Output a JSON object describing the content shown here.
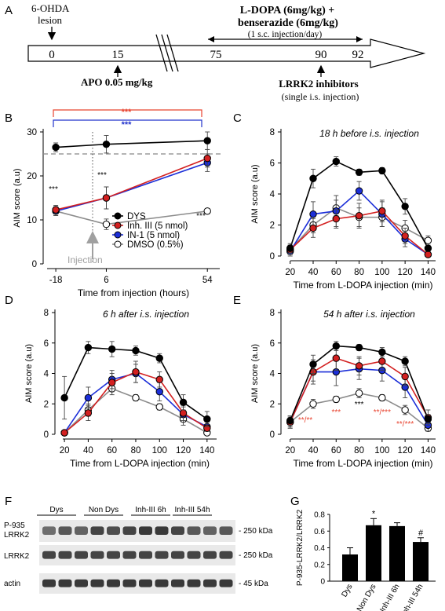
{
  "colors": {
    "dys": "#000000",
    "inh3": "#d32020",
    "in1": "#1c2fd8",
    "dmso": "#ffffff",
    "dmso_line": "#8c8c8c",
    "injection": "#a0a0a0",
    "arrow_red": "#e8432f",
    "arrow_blue": "#2233cc"
  },
  "panel_letters": {
    "a": "A",
    "b": "B",
    "c": "C",
    "d": "D",
    "e": "E",
    "f": "F",
    "g": "G"
  },
  "timeline": {
    "ticks": [
      "0",
      "15",
      "75",
      "90",
      "92"
    ],
    "lesion_label_1": "6-OHDA",
    "lesion_label_2": "lesion",
    "apo_label": "APO 0.05 mg/kg",
    "ldopa_label_1": "L-DOPA (6mg/kg) +",
    "ldopa_label_2": "benserazide (6mg/kg)",
    "ldopa_label_3": "(1 s.c. injection/day)",
    "lrrk2_label_1": "LRRK2 inhibitors",
    "lrrk2_label_2": "(single i.s. injection)"
  },
  "chart_data": [
    {
      "id": "B",
      "type": "line",
      "x": [
        -18,
        6,
        54
      ],
      "xticks": [
        "-18",
        "6",
        "54"
      ],
      "xlim": [
        -18,
        54
      ],
      "ylim": [
        0,
        30
      ],
      "yticks": [
        0,
        10,
        20,
        30
      ],
      "xlabel": "Time from injection (hours)",
      "ylabel": "AIM score (a.u)",
      "series": [
        {
          "name": "DYS",
          "values": [
            26.5,
            27.2,
            28.0
          ],
          "err": [
            1.0,
            2.0,
            2.0
          ]
        },
        {
          "name": "Inh. III (5 nmol)",
          "values": [
            12.3,
            15.0,
            24.0
          ],
          "err": [
            1.0,
            2.5,
            2.0
          ]
        },
        {
          "name": "IN-1 (5 nmol)",
          "values": [
            12.0,
            15.0,
            23.0
          ],
          "err": [
            1.0,
            2.5,
            2.0
          ]
        },
        {
          "name": "DMSO (0.5%)",
          "values": [
            12.0,
            9.0,
            12.0
          ],
          "err": [
            1.0,
            1.2,
            0.6
          ]
        }
      ],
      "reference_line": 25,
      "injection_label": "Injection",
      "annotations": [
        "***",
        "***",
        "***"
      ],
      "bracket_red": "***",
      "bracket_blue": "***",
      "legend": "center-right"
    },
    {
      "id": "C",
      "type": "line",
      "title": "18 h before i.s. injection",
      "x": [
        20,
        40,
        60,
        80,
        100,
        120,
        140
      ],
      "xticks": [
        "20",
        "40",
        "60",
        "80",
        "100",
        "120",
        "140"
      ],
      "ylim": [
        0,
        8
      ],
      "yticks": [
        0,
        2,
        4,
        6,
        8
      ],
      "xlabel": "Time from L-DOPA injection (min)",
      "ylabel": "AIM score (a.u)",
      "series": [
        {
          "name": "DYS",
          "values": [
            0.5,
            5.0,
            6.1,
            5.4,
            5.5,
            3.2,
            0.5
          ],
          "err": [
            0.3,
            0.6,
            0.3,
            0.2,
            0.2,
            0.5,
            0.2
          ]
        },
        {
          "name": "Inh. III (5 nmol)",
          "values": [
            0.4,
            1.8,
            2.4,
            2.6,
            2.9,
            1.3,
            0.1
          ],
          "err": [
            0.3,
            0.6,
            0.6,
            0.8,
            0.7,
            0.5,
            0.1
          ]
        },
        {
          "name": "IN-1 (5 nmol)",
          "values": [
            0.3,
            2.7,
            2.9,
            4.2,
            2.7,
            1.1,
            0.1
          ],
          "err": [
            0.3,
            0.8,
            1.0,
            0.6,
            0.8,
            0.5,
            0.1
          ]
        },
        {
          "name": "DMSO (0.5%)",
          "values": [
            0.4,
            2.0,
            3.1,
            2.5,
            2.5,
            1.8,
            1.0
          ],
          "err": [
            0.3,
            0.5,
            0.5,
            0.6,
            0.6,
            0.5,
            0.3
          ]
        }
      ]
    },
    {
      "id": "D",
      "type": "line",
      "title": "6 h after i.s. injection",
      "x": [
        20,
        40,
        60,
        80,
        100,
        120,
        140
      ],
      "xticks": [
        "20",
        "40",
        "60",
        "80",
        "100",
        "120",
        "140"
      ],
      "ylim": [
        0,
        8
      ],
      "yticks": [
        0,
        2,
        4,
        6,
        8
      ],
      "xlabel": "Time from L-DOPA injection (min)",
      "ylabel": "AIM score (a.u)",
      "series": [
        {
          "name": "DYS",
          "values": [
            2.4,
            5.7,
            5.6,
            5.5,
            5.0,
            2.1,
            1.0
          ],
          "err": [
            1.4,
            0.4,
            0.5,
            0.3,
            0.3,
            0.5,
            0.5
          ]
        },
        {
          "name": "Inh. III (5 nmol)",
          "values": [
            0.1,
            1.4,
            3.4,
            4.1,
            3.6,
            1.4,
            0.4
          ],
          "err": [
            0.1,
            0.5,
            0.6,
            0.7,
            0.5,
            0.5,
            0.2
          ]
        },
        {
          "name": "IN-1 (5 nmol)",
          "values": [
            0.1,
            2.4,
            3.6,
            4.0,
            2.8,
            1.3,
            0.5
          ],
          "err": [
            0.1,
            0.7,
            0.6,
            0.6,
            0.6,
            0.5,
            0.3
          ]
        },
        {
          "name": "DMSO (0.5%)",
          "values": [
            0.1,
            1.6,
            3.0,
            2.4,
            1.8,
            1.0,
            0.1
          ],
          "err": [
            0.1,
            0.4,
            0.4,
            0.2,
            0.2,
            0.4,
            0.1
          ]
        }
      ]
    },
    {
      "id": "E",
      "type": "line",
      "title": "54 h after i.s. injection",
      "x": [
        20,
        40,
        60,
        80,
        100,
        120,
        140
      ],
      "xticks": [
        "20",
        "40",
        "60",
        "80",
        "100",
        "120",
        "140"
      ],
      "ylim": [
        0,
        8
      ],
      "yticks": [
        0,
        2,
        4,
        6,
        8
      ],
      "xlabel": "Time from L-DOPA injection (min)",
      "ylabel": "AIM score (a.u)",
      "series": [
        {
          "name": "DYS",
          "values": [
            0.9,
            4.6,
            5.8,
            5.7,
            5.4,
            4.8,
            1.0
          ],
          "err": [
            0.3,
            0.6,
            0.3,
            0.2,
            0.3,
            0.3,
            0.3
          ]
        },
        {
          "name": "Inh. III (5 nmol)",
          "values": [
            0.8,
            4.1,
            5.0,
            4.5,
            4.8,
            3.8,
            1.1
          ],
          "err": [
            0.4,
            0.6,
            0.8,
            0.6,
            0.6,
            0.6,
            0.5
          ]
        },
        {
          "name": "IN-1 (5 nmol)",
          "values": [
            0.8,
            4.1,
            4.1,
            4.3,
            4.2,
            3.1,
            0.6
          ],
          "err": [
            0.4,
            0.8,
            0.9,
            0.7,
            0.7,
            0.7,
            0.4
          ]
        },
        {
          "name": "DMSO (0.5%)",
          "values": [
            0.8,
            2.0,
            2.3,
            2.7,
            2.4,
            1.6,
            0.4
          ],
          "err": [
            0.3,
            0.3,
            0.2,
            0.3,
            0.2,
            0.3,
            0.2
          ]
        }
      ],
      "annotations": [
        "***",
        "**/**",
        "***",
        "**/***",
        "**/***",
        "**/***"
      ]
    },
    {
      "id": "G",
      "type": "bar",
      "categories": [
        "Dys",
        "Non Dys",
        "Inh-III 6h",
        "Inh-III 54h"
      ],
      "values": [
        0.32,
        0.67,
        0.66,
        0.47
      ],
      "err": [
        0.08,
        0.08,
        0.04,
        0.05
      ],
      "ylim": [
        0,
        0.8
      ],
      "yticks": [
        "0",
        "0.2",
        "0.4",
        "0.6",
        "0.8"
      ],
      "ylabel": "P-935-LRRK2/LRRK2",
      "annotations": [
        "*",
        "#"
      ]
    }
  ],
  "blot": {
    "groups": [
      "Dys",
      "Non Dys",
      "Inh-III 6h",
      "Inh-III 54h"
    ],
    "rows": [
      "P-935 LRRK2",
      "LRRK2",
      "actin"
    ],
    "row_label_p935_1": "P-935",
    "row_label_p935_2": "LRRK2",
    "row_label_lrrk2": "LRRK2",
    "row_label_actin": "actin",
    "kda": [
      "- 250 kDa",
      "- 250 kDa",
      "- 45 kDa"
    ]
  }
}
